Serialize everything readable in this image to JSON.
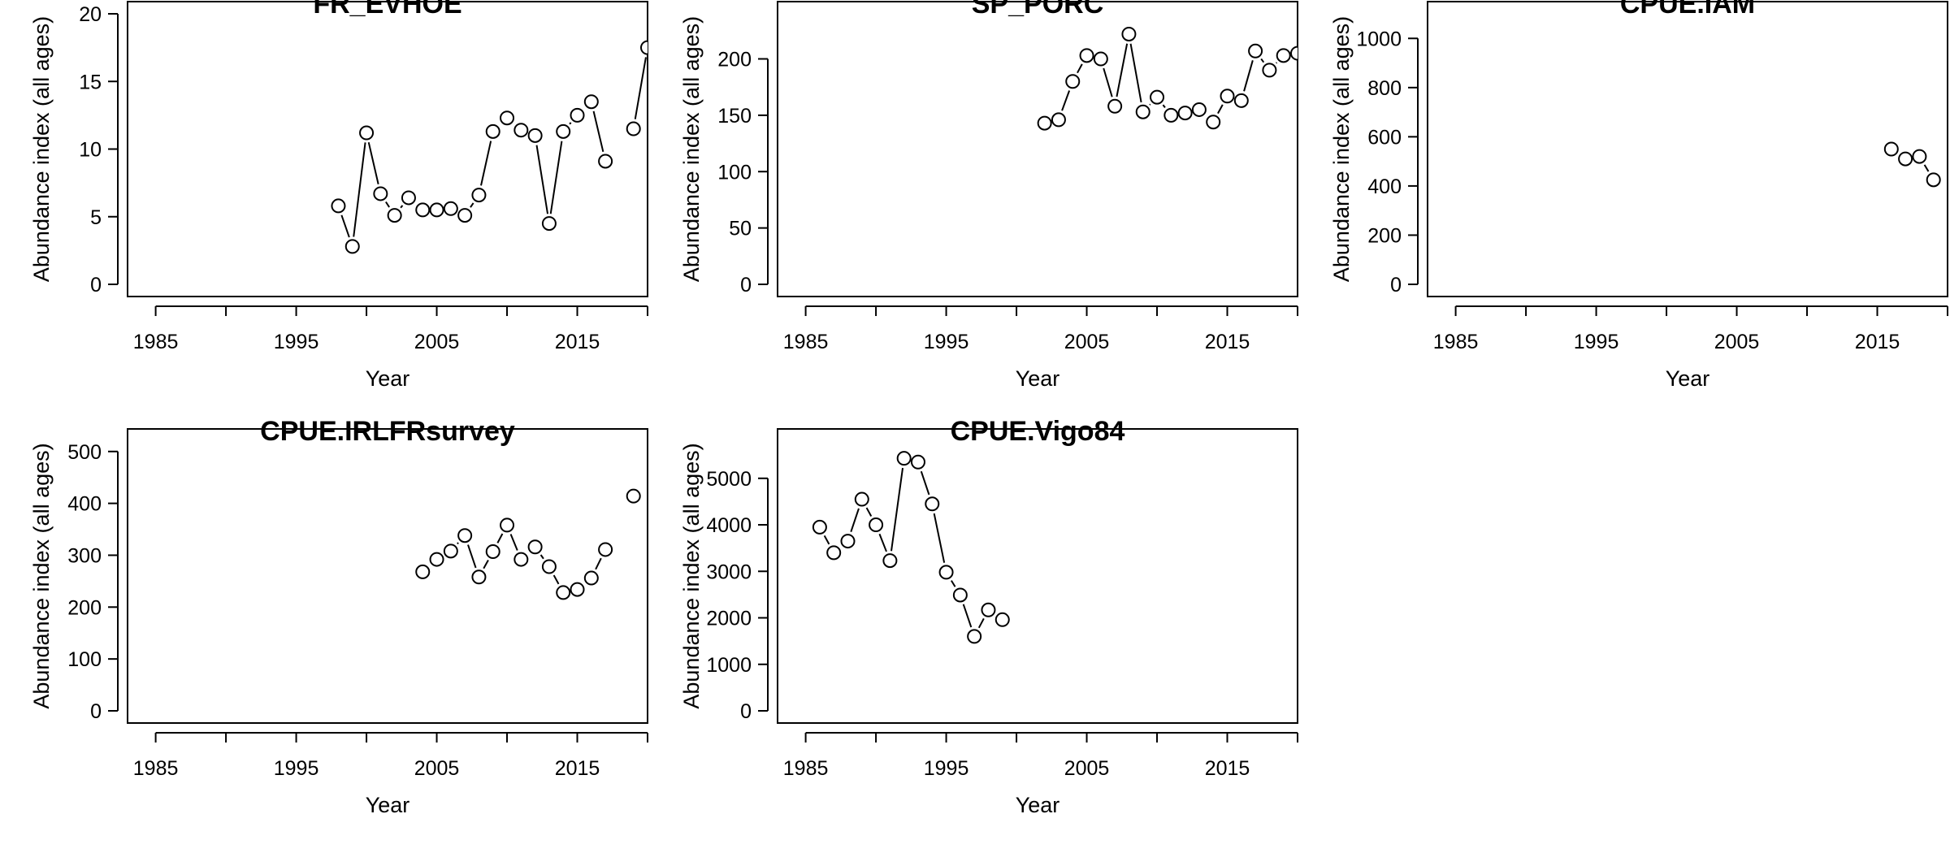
{
  "chart_data": [
    {
      "type": "scatter",
      "title": "FR_EVHOE",
      "xlabel": "Year",
      "ylabel": "Abundance index (all ages)",
      "xlim": [
        1983,
        2020
      ],
      "ylim": [
        0,
        20
      ],
      "xticks": [
        "1985",
        "1995",
        "2005",
        "2015"
      ],
      "yticks": [
        "0",
        "5",
        "10",
        "15",
        "20"
      ],
      "series": [
        {
          "x": [
            1998,
            1999,
            2000,
            2001,
            2002,
            2003,
            2004,
            2005,
            2006,
            2007,
            2008,
            2009,
            2010,
            2011,
            2012,
            2013,
            2014,
            2015,
            2016,
            2017,
            2019,
            2020
          ],
          "values": [
            5.8,
            2.8,
            11.2,
            6.7,
            5.1,
            6.4,
            5.5,
            5.5,
            5.6,
            5.1,
            6.6,
            11.3,
            12.3,
            11.4,
            11.0,
            4.5,
            11.3,
            12.5,
            13.5,
            9.1,
            11.5,
            17.5
          ]
        }
      ]
    },
    {
      "type": "scatter",
      "title": "SP_PORC",
      "xlabel": "Year",
      "ylabel": "Abundance index (all ages)",
      "xlim": [
        1983,
        2020
      ],
      "ylim": [
        0,
        240
      ],
      "xticks": [
        "1985",
        "1995",
        "2005",
        "2015"
      ],
      "yticks": [
        "0",
        "50",
        "100",
        "150",
        "200"
      ],
      "series": [
        {
          "x": [
            2002,
            2003,
            2004,
            2005,
            2006,
            2007,
            2008,
            2009,
            2010,
            2011,
            2012,
            2013,
            2014,
            2015,
            2016,
            2017,
            2018,
            2019,
            2020
          ],
          "values": [
            143,
            146,
            180,
            203,
            200,
            158,
            222,
            153,
            166,
            150,
            152,
            155,
            144,
            167,
            163,
            207,
            190,
            203,
            205
          ]
        }
      ]
    },
    {
      "type": "scatter",
      "title": "CPUE.IAM",
      "xlabel": "Year",
      "ylabel": "Abundance index (all ages)",
      "xlim": [
        1983,
        2020
      ],
      "ylim": [
        0,
        1100
      ],
      "xticks": [
        "1985",
        "1995",
        "2005",
        "2015"
      ],
      "yticks": [
        "0",
        "200",
        "400",
        "600",
        "800",
        "1000"
      ],
      "series": [
        {
          "x": [
            2016,
            2017,
            2018,
            2019
          ],
          "values": [
            550,
            510,
            520,
            425
          ]
        }
      ]
    },
    {
      "type": "scatter",
      "title": "CPUE.IRLFRsurvey",
      "xlabel": "Year",
      "ylabel": "Abundance index (all ages)",
      "xlim": [
        1983,
        2020
      ],
      "ylim": [
        0,
        520
      ],
      "xticks": [
        "1985",
        "1995",
        "2005",
        "2015"
      ],
      "yticks": [
        "0",
        "100",
        "200",
        "300",
        "400",
        "500"
      ],
      "series": [
        {
          "x": [
            2004,
            2005,
            2006,
            2007,
            2008,
            2009,
            2010,
            2011,
            2012,
            2013,
            2014,
            2015,
            2016,
            2017,
            2019
          ],
          "values": [
            268,
            292,
            308,
            338,
            258,
            307,
            358,
            292,
            316,
            278,
            228,
            234,
            256,
            311,
            414
          ]
        }
      ]
    },
    {
      "type": "scatter",
      "title": "CPUE.Vigo84",
      "xlabel": "Year",
      "ylabel": "Abundance index (all ages)",
      "xlim": [
        1983,
        2020
      ],
      "ylim": [
        0,
        5800
      ],
      "xticks": [
        "1985",
        "1995",
        "2005",
        "2015"
      ],
      "yticks": [
        "0",
        "1000",
        "2000",
        "3000",
        "4000",
        "5000"
      ],
      "series": [
        {
          "x": [
            1986,
            1987,
            1988,
            1989,
            1990,
            1991,
            1992,
            1993,
            1994,
            1995,
            1996,
            1997,
            1998,
            1999
          ],
          "values": [
            3950,
            3400,
            3650,
            4550,
            4000,
            3230,
            5430,
            5350,
            4450,
            2980,
            2490,
            1600,
            2170,
            1960
          ]
        }
      ]
    }
  ]
}
